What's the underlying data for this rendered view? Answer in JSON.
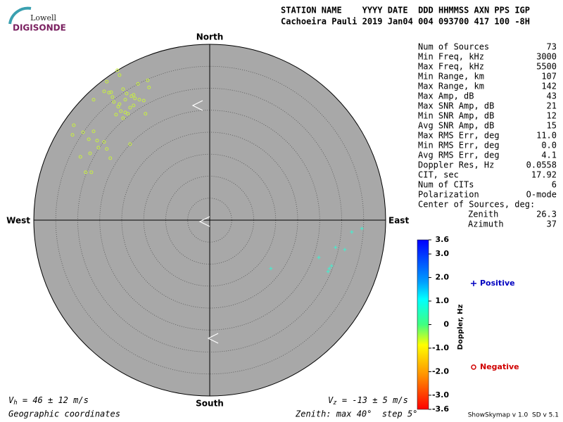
{
  "chart_data": {
    "type": "skymap",
    "logo_top": "Lowell",
    "logo_bottom": "DIGISONDE",
    "header": [
      "STATION NAME    YYYY DATE  DDD HHMMSS AXN PPS IGP",
      "Cachoeira Pauli 2019 Jan04 004 093700 417 100 -8H"
    ],
    "directions": {
      "north": "North",
      "south": "South",
      "east": "East",
      "west": "West"
    },
    "rlim": [
      0,
      40
    ],
    "rticks": [
      5,
      10,
      15,
      20,
      25,
      30,
      35,
      40
    ],
    "series": [
      {
        "name": "Positive",
        "color": "#40f0d0",
        "legend_color": "#0000c0",
        "marker": "plus",
        "x": [
          34.6,
          32.3,
          30.7,
          28.6,
          24.8,
          27.7,
          27.2,
          26.9,
          13.9
        ],
        "values": [
          -1.9,
          -2.7,
          -6.7,
          -6.2,
          -8.5,
          -10.4,
          -11.0,
          -11.7,
          -11.0
        ]
      },
      {
        "name": "Negative",
        "color": "#c8f040",
        "legend_color": "#d00000",
        "marker": "circle",
        "x": [
          -21.0,
          -20.5,
          -23.4,
          -24.0,
          -22.9,
          -22.4,
          -26.4,
          -22.1,
          -21.8,
          -19.7,
          -18.9,
          -17.8,
          -17.0,
          -16.0,
          -15.0,
          -14.1,
          -13.8,
          -16.3,
          -20.8,
          -20.2,
          -19.2,
          -18.6,
          -21.3,
          -19.7,
          -18.1,
          -17.3,
          -14.6,
          -30.9,
          -31.2,
          -28.8,
          -26.4,
          -25.6,
          -27.5,
          -24.0,
          -23.4,
          -25.3,
          -29.4,
          -27.2,
          -26.9,
          -28.2,
          -22.6,
          -18.1,
          -20.5,
          -19.2,
          -17.3
        ],
        "values": [
          34.1,
          33.0,
          31.5,
          29.3,
          29.0,
          29.1,
          27.4,
          28.0,
          26.9,
          29.8,
          28.8,
          28.2,
          27.7,
          27.4,
          27.2,
          31.8,
          30.2,
          31.0,
          25.8,
          24.8,
          24.5,
          24.2,
          24.0,
          23.2,
          25.6,
          26.1,
          24.2,
          21.6,
          19.4,
          20.0,
          20.2,
          18.1,
          18.4,
          17.8,
          16.2,
          16.5,
          14.4,
          15.2,
          10.9,
          10.9,
          14.1,
          17.3,
          26.4,
          27.4,
          28.5
        ]
      }
    ],
    "stats": [
      [
        "Num of Sources",
        "73"
      ],
      [
        "Min Freq, kHz",
        "3000"
      ],
      [
        "Max Freq, kHz",
        "5500"
      ],
      [
        "Min Range, km",
        "107"
      ],
      [
        "Max Range, km",
        "142"
      ],
      [
        "Max Amp, dB",
        "43"
      ],
      [
        "Max SNR Amp, dB",
        "21"
      ],
      [
        "Min SNR Amp, dB",
        "12"
      ],
      [
        "Avg SNR Amp, dB",
        "15"
      ],
      [
        "Max RMS Err, deg",
        "11.0"
      ],
      [
        "Min RMS Err, deg",
        "0.0"
      ],
      [
        "Avg RMS Err, deg",
        "4.1"
      ],
      [
        "Doppler Res, Hz",
        "0.0558"
      ],
      [
        "CIT, sec",
        "17.92"
      ],
      [
        "Num of CITs",
        "6"
      ],
      [
        "Polarization",
        "O-mode"
      ]
    ],
    "center_title": "Center of Sources, deg:",
    "center": [
      [
        "Zenith",
        "26.3"
      ],
      [
        "Azimuth",
        "37"
      ]
    ],
    "colorbar": {
      "label": "Doppler, Hz",
      "clim": [
        -3.6,
        3.6
      ],
      "ticks": [
        3.6,
        {
          "value": 3.0,
          "label": "3.0"
        },
        {
          "value": 2.0,
          "label": "2.0"
        },
        {
          "value": 1.0,
          "label": "1.0"
        },
        0,
        {
          "value": -1.0,
          "label": "-1.0"
        },
        {
          "value": -2.0,
          "label": "-2.0"
        },
        {
          "value": -3.0,
          "label": "-3.0"
        },
        -3.6
      ]
    },
    "vh": {
      "symbol": "V",
      "sub": "h",
      "text": " = 46 ± 12 m/s"
    },
    "vz": {
      "symbol": "V",
      "sub": "z",
      "text": " = -13 ± 5 m/s"
    },
    "coords_note": "Geographic coordinates",
    "zenith_note": "Zenith: max 40°  step 5°",
    "version": "ShowSkymap v 1.0  SD v 5.1"
  }
}
